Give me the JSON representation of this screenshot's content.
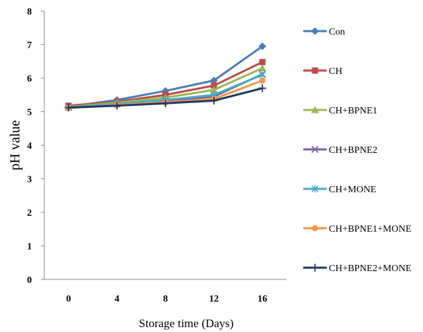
{
  "chart_data": {
    "type": "line",
    "xlabel": "Storage time (Days)",
    "ylabel": "pH value",
    "x": [
      0,
      4,
      8,
      12,
      16
    ],
    "ylim": [
      0,
      8
    ],
    "yticks": [
      0,
      1,
      2,
      3,
      4,
      5,
      6,
      7,
      8
    ],
    "grid": false,
    "legend_position": "right",
    "series": [
      {
        "name": "Con",
        "marker": "diamond",
        "color": "#4a7ebb",
        "values": [
          5.15,
          5.35,
          5.62,
          5.93,
          6.95
        ]
      },
      {
        "name": "CH",
        "marker": "square",
        "color": "#be4b48",
        "values": [
          5.18,
          5.3,
          5.5,
          5.78,
          6.48
        ]
      },
      {
        "name": "CH+BPNE1",
        "marker": "triangle",
        "color": "#98b954",
        "values": [
          5.14,
          5.27,
          5.42,
          5.65,
          6.3
        ]
      },
      {
        "name": "CH+BPNE2",
        "marker": "x",
        "color": "#7d5fa0",
        "values": [
          5.12,
          5.22,
          5.32,
          5.45,
          6.12
        ]
      },
      {
        "name": "CH+MONE",
        "marker": "asterisk",
        "color": "#46aac5",
        "values": [
          5.13,
          5.24,
          5.35,
          5.5,
          6.1
        ]
      },
      {
        "name": "CH+BPNE1+MONE",
        "marker": "circle",
        "color": "#f79646",
        "values": [
          5.11,
          5.2,
          5.28,
          5.38,
          5.93
        ]
      },
      {
        "name": "CH+BPNE2+MONE",
        "marker": "plus",
        "color": "#1f3a5f",
        "values": [
          5.12,
          5.18,
          5.25,
          5.33,
          5.7
        ]
      }
    ]
  }
}
